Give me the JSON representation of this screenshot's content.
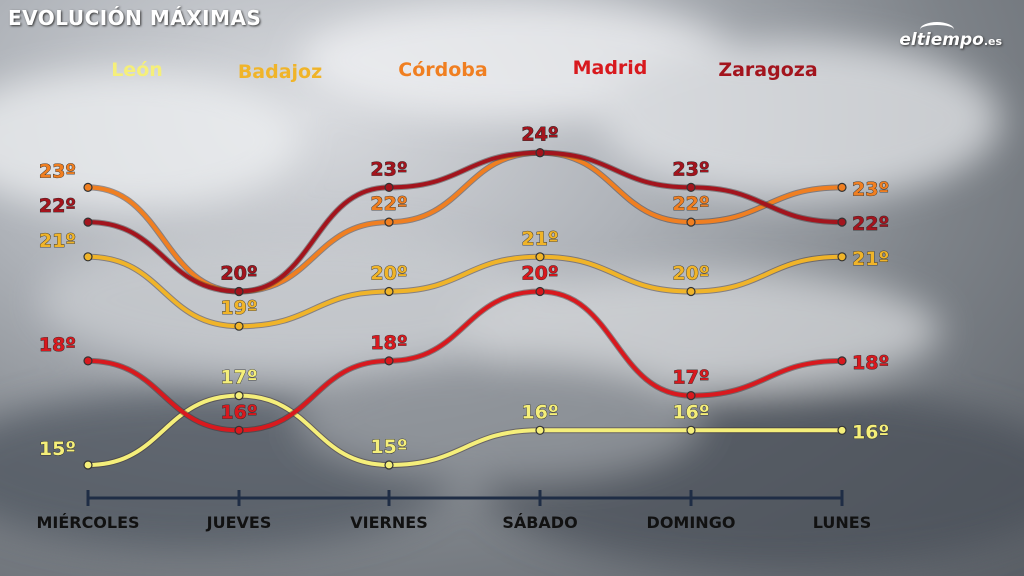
{
  "header": {
    "title": "EVOLUCIÓN MÁXIMAS"
  },
  "brand": {
    "name": "eltiempo",
    "suffix": ".es"
  },
  "chart_data": {
    "type": "line",
    "title": "EVOLUCIÓN MÁXIMAS",
    "categories": [
      "MIÉRCOLES",
      "JUEVES",
      "VIERNES",
      "SÁBADO",
      "DOMINGO",
      "LUNES"
    ],
    "value_suffix": "º",
    "series": [
      {
        "name": "León",
        "color": "#f5ef7a",
        "values": [
          15,
          17,
          15,
          16,
          16,
          16
        ]
      },
      {
        "name": "Badajoz",
        "color": "#f0b429",
        "values": [
          21,
          19,
          20,
          21,
          20,
          21
        ]
      },
      {
        "name": "Córdoba",
        "color": "#f07f21",
        "values": [
          23,
          20,
          22,
          24,
          22,
          23
        ]
      },
      {
        "name": "Madrid",
        "color": "#d8191e",
        "values": [
          18,
          16,
          18,
          20,
          17,
          18
        ]
      },
      {
        "name": "Zaragoza",
        "color": "#a3141d",
        "values": [
          22,
          20,
          23,
          24,
          23,
          22
        ]
      }
    ],
    "legend_position": "top",
    "grid": false
  }
}
